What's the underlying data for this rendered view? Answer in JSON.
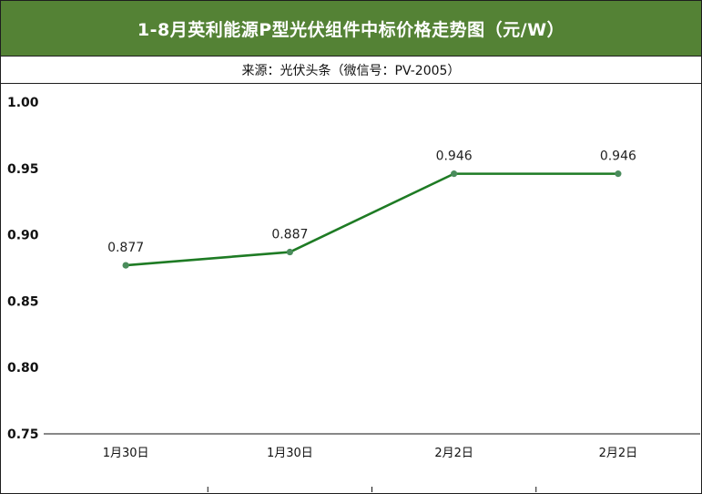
{
  "title": "1-8月英利能源P型光伏组件中标价格走势图（元/W）",
  "subtitle": "来源：光伏头条（微信号：PV-2005）",
  "colors": {
    "header_bg": "#548235",
    "line": "#1e7b24",
    "marker": "#4a8c5c"
  },
  "chart_data": {
    "type": "line",
    "title": "1-8月英利能源P型光伏组件中标价格走势图（元/W）",
    "subtitle": "来源：光伏头条（微信号：PV-2005）",
    "categories": [
      "1月30日",
      "1月30日",
      "2月2日",
      "2月2日"
    ],
    "series": [
      {
        "values": [
          0.877,
          0.887,
          0.946,
          0.946
        ]
      }
    ],
    "data_labels": [
      "0.877",
      "0.887",
      "0.946",
      "0.946"
    ],
    "yticks": [
      "1.00",
      "0.95",
      "0.90",
      "0.85",
      "0.80",
      "0.75"
    ],
    "ylim": [
      0.75,
      1.0
    ],
    "grid": false,
    "legend": "none"
  }
}
